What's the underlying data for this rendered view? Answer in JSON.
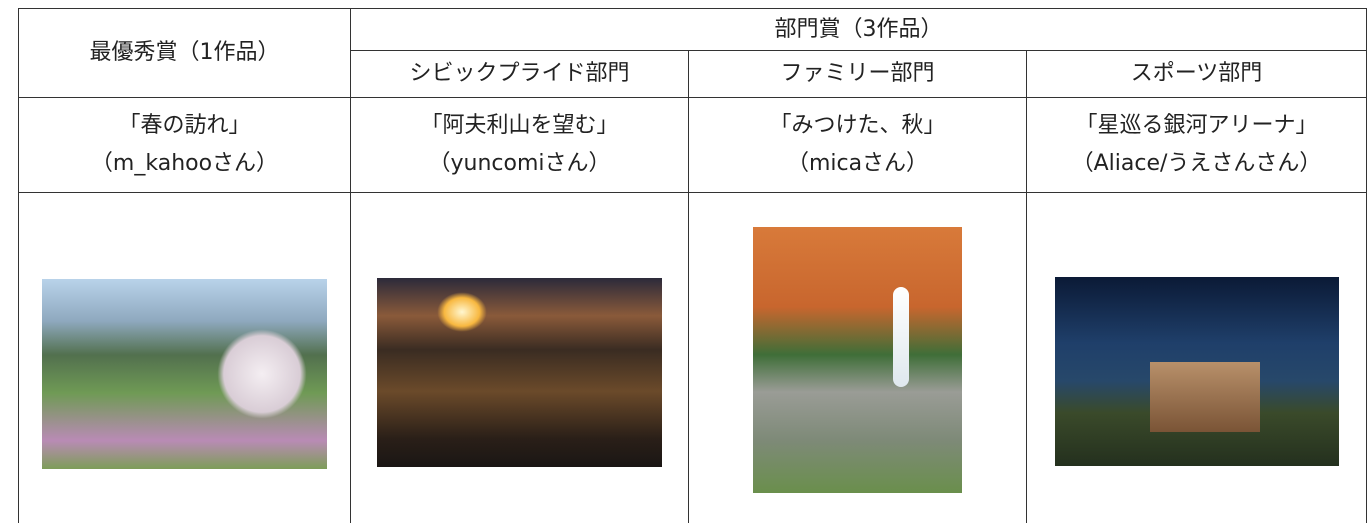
{
  "table": {
    "header": {
      "grand_prize": "最優秀賞（1作品）",
      "division_prize": "部門賞（3作品）",
      "divisions": [
        "シビックプライド部門",
        "ファミリー部門",
        "スポーツ部門"
      ]
    },
    "entries": [
      {
        "title": "「春の訪れ」",
        "author": "（m_kahooさん）"
      },
      {
        "title": "「阿夫利山を望む」",
        "author": "（yuncomiさん）"
      },
      {
        "title": "「みつけた、秋」",
        "author": "（micaさん）"
      },
      {
        "title": "「星巡る銀河アリーナ」",
        "author": "（Aliace/うえさんさん）"
      }
    ]
  }
}
